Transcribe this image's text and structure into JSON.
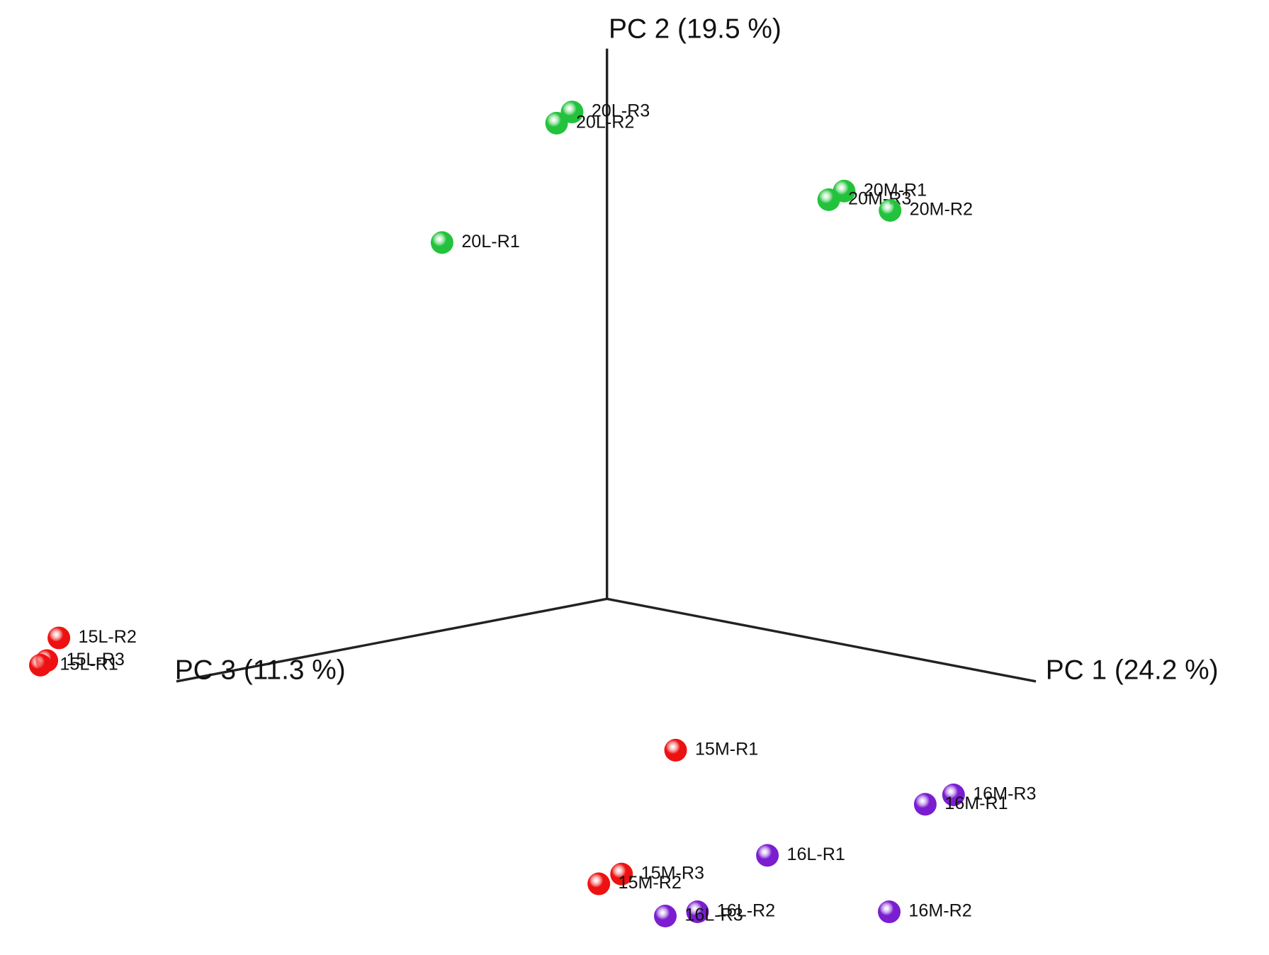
{
  "chart_data": {
    "type": "scatter3d",
    "xlabel": "PC 1 (24.2 %)",
    "ylabel": "PC 2 (19.5 %)",
    "zlabel": "PC 3 (11.3 %)",
    "series": [
      {
        "color": "#22c23c",
        "labels": [
          "20L-R3",
          "20L-R2",
          "20L-R1",
          "20M-R1",
          "20M-R3",
          "20M-R2"
        ],
        "x": [
          0,
          0,
          0,
          0.553,
          0.517,
          0.66
        ],
        "y": [
          0.897,
          0.882,
          0.705,
          0.824,
          0.803,
          0.805
        ],
        "z": [
          0.081,
          0.117,
          0.383,
          0,
          0,
          0
        ]
      },
      {
        "color": "#ee1111",
        "labels": [
          "15L-R2",
          "15L-R3",
          "15L-R1",
          "15M-R1",
          "15M-R3",
          "15M-R2"
        ],
        "x": [
          0,
          0,
          0,
          0.16,
          0.034,
          0
        ],
        "y": [
          0.12,
          0.083,
          0.077,
          -0.251,
          -0.495,
          -0.515
        ],
        "z": [
          1.273,
          1.301,
          1.316,
          0,
          0,
          0.019
        ]
      },
      {
        "color": "#7a1ed0",
        "labels": [
          "16M-R3",
          "16M-R1",
          "16L-R1",
          "16M-R2",
          "16L-R2",
          "16L-R3"
        ],
        "x": [
          0.808,
          0.742,
          0.374,
          0.658,
          0.211,
          0.136
        ],
        "y": [
          -0.235,
          -0.262,
          -0.41,
          -0.47,
          -0.537,
          -0.556
        ],
        "z": [
          0,
          0,
          0,
          0,
          0,
          0
        ]
      }
    ]
  }
}
